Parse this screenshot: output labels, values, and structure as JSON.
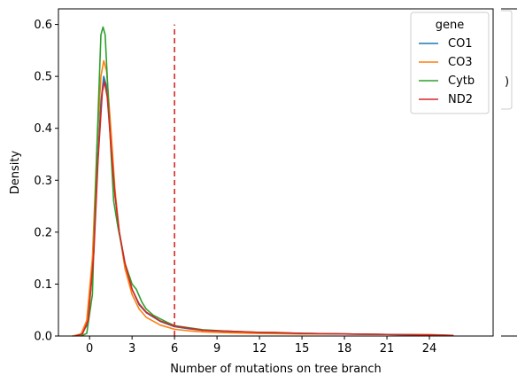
{
  "chart_data": {
    "type": "line",
    "title": "",
    "xlabel": "Number of mutations on tree branch",
    "ylabel": "Density",
    "xlim": [
      -2.2,
      28.5
    ],
    "ylim": [
      0,
      0.63
    ],
    "xticks": [
      0,
      3,
      6,
      9,
      12,
      15,
      18,
      21,
      24
    ],
    "yticks": [
      0.0,
      0.1,
      0.2,
      0.3,
      0.4,
      0.5,
      0.6
    ],
    "grid": false,
    "legend": {
      "title": "gene",
      "placement": "top-right"
    },
    "threshold_line": {
      "x": 6,
      "y_from": 0,
      "y_to": 0.6,
      "color": "#d62728",
      "style": "dashed"
    },
    "side_panel_glyph": ")",
    "series": [
      {
        "name": "CO1",
        "color": "#1f77b4",
        "points": [
          [
            -1.2,
            0.0
          ],
          [
            -0.6,
            0.003
          ],
          [
            -0.2,
            0.02
          ],
          [
            0.2,
            0.12
          ],
          [
            0.5,
            0.3
          ],
          [
            0.8,
            0.45
          ],
          [
            1.0,
            0.5
          ],
          [
            1.2,
            0.48
          ],
          [
            1.5,
            0.38
          ],
          [
            1.8,
            0.27
          ],
          [
            2.1,
            0.2
          ],
          [
            2.5,
            0.14
          ],
          [
            3.0,
            0.09
          ],
          [
            3.5,
            0.06
          ],
          [
            4.0,
            0.045
          ],
          [
            5.0,
            0.028
          ],
          [
            6.0,
            0.018
          ],
          [
            7.0,
            0.014
          ],
          [
            8.0,
            0.011
          ],
          [
            10.0,
            0.008
          ],
          [
            12.0,
            0.006
          ],
          [
            15.0,
            0.005
          ],
          [
            18.0,
            0.004
          ],
          [
            21.0,
            0.003
          ],
          [
            24.0,
            0.002
          ],
          [
            25.7,
            0.001
          ]
        ]
      },
      {
        "name": "CO3",
        "color": "#ff7f0e",
        "points": [
          [
            -1.2,
            0.0
          ],
          [
            -0.6,
            0.004
          ],
          [
            -0.2,
            0.03
          ],
          [
            0.2,
            0.15
          ],
          [
            0.5,
            0.35
          ],
          [
            0.8,
            0.5
          ],
          [
            1.0,
            0.53
          ],
          [
            1.2,
            0.51
          ],
          [
            1.5,
            0.4
          ],
          [
            1.8,
            0.28
          ],
          [
            2.1,
            0.2
          ],
          [
            2.5,
            0.13
          ],
          [
            3.0,
            0.08
          ],
          [
            3.5,
            0.052
          ],
          [
            4.0,
            0.036
          ],
          [
            5.0,
            0.021
          ],
          [
            6.0,
            0.013
          ],
          [
            7.0,
            0.01
          ],
          [
            8.0,
            0.008
          ],
          [
            10.0,
            0.006
          ],
          [
            12.0,
            0.005
          ],
          [
            15.0,
            0.004
          ],
          [
            18.0,
            0.004
          ],
          [
            21.0,
            0.003
          ],
          [
            24.0,
            0.003
          ],
          [
            25.7,
            0.001
          ]
        ]
      },
      {
        "name": "Cytb",
        "color": "#2ca02c",
        "points": [
          [
            -0.6,
            0.0
          ],
          [
            -0.2,
            0.005
          ],
          [
            0.2,
            0.08
          ],
          [
            0.5,
            0.35
          ],
          [
            0.8,
            0.58
          ],
          [
            0.95,
            0.595
          ],
          [
            1.1,
            0.58
          ],
          [
            1.3,
            0.47
          ],
          [
            1.5,
            0.36
          ],
          [
            1.7,
            0.26
          ],
          [
            2.0,
            0.21
          ],
          [
            2.5,
            0.14
          ],
          [
            3.0,
            0.1
          ],
          [
            3.3,
            0.09
          ],
          [
            3.7,
            0.065
          ],
          [
            4.0,
            0.052
          ],
          [
            4.5,
            0.04
          ],
          [
            5.0,
            0.033
          ],
          [
            5.5,
            0.026
          ],
          [
            6.0,
            0.02
          ],
          [
            7.0,
            0.016
          ],
          [
            8.0,
            0.012
          ],
          [
            10.0,
            0.009
          ],
          [
            12.0,
            0.007
          ],
          [
            15.0,
            0.005
          ],
          [
            18.0,
            0.004
          ],
          [
            21.0,
            0.003
          ],
          [
            24.0,
            0.002
          ],
          [
            25.7,
            0.001
          ]
        ]
      },
      {
        "name": "ND2",
        "color": "#d62728",
        "points": [
          [
            -1.0,
            0.0
          ],
          [
            -0.5,
            0.004
          ],
          [
            -0.1,
            0.03
          ],
          [
            0.3,
            0.16
          ],
          [
            0.6,
            0.34
          ],
          [
            0.9,
            0.47
          ],
          [
            1.05,
            0.49
          ],
          [
            1.25,
            0.46
          ],
          [
            1.5,
            0.37
          ],
          [
            1.8,
            0.27
          ],
          [
            2.1,
            0.2
          ],
          [
            2.5,
            0.14
          ],
          [
            3.0,
            0.09
          ],
          [
            3.5,
            0.062
          ],
          [
            4.0,
            0.046
          ],
          [
            5.0,
            0.029
          ],
          [
            6.0,
            0.019
          ],
          [
            7.0,
            0.015
          ],
          [
            8.0,
            0.011
          ],
          [
            10.0,
            0.009
          ],
          [
            12.0,
            0.007
          ],
          [
            13.0,
            0.007
          ],
          [
            15.0,
            0.005
          ],
          [
            18.0,
            0.004
          ],
          [
            21.0,
            0.003
          ],
          [
            24.0,
            0.002
          ],
          [
            25.7,
            0.001
          ]
        ]
      }
    ]
  }
}
